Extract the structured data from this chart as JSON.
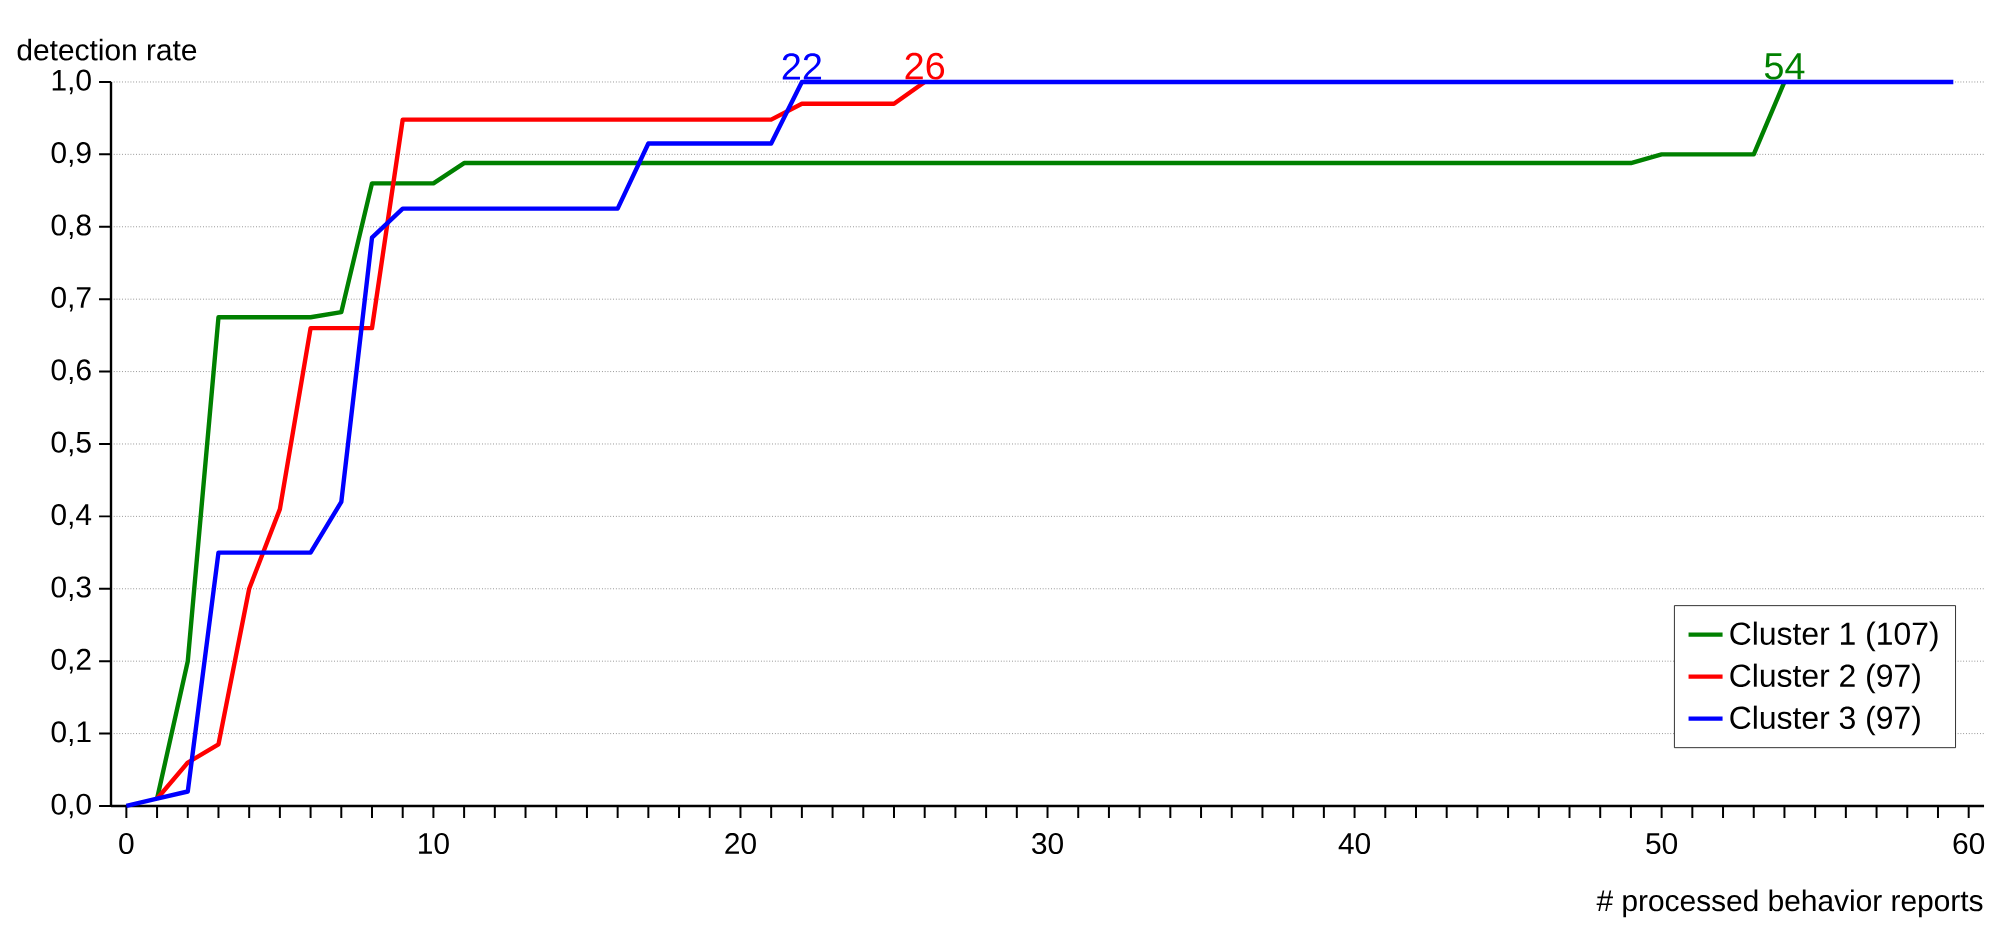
{
  "chart_data": {
    "type": "line",
    "xlabel": "# processed behavior reports",
    "ylabel": "detection rate",
    "xlim": [
      -0.5,
      60.5
    ],
    "ylim": [
      0,
      1
    ],
    "xticks": [
      0,
      10,
      20,
      30,
      40,
      50,
      60
    ],
    "yticks": [
      {
        "value": 0,
        "label": "0,0"
      },
      {
        "value": 0.1,
        "label": "0,1"
      },
      {
        "value": 0.2,
        "label": "0,2"
      },
      {
        "value": 0.3,
        "label": "0,3"
      },
      {
        "value": 0.4,
        "label": "0,4"
      },
      {
        "value": 0.5,
        "label": "0,5"
      },
      {
        "value": 0.6,
        "label": "0,6"
      },
      {
        "value": 0.7,
        "label": "0,7"
      },
      {
        "value": 0.8,
        "label": "0,8"
      },
      {
        "value": 0.9,
        "label": "0,9"
      },
      {
        "value": 1.0,
        "label": "1,0"
      }
    ],
    "grid": "y",
    "legend": "bottom right",
    "marker": "none",
    "line_style": "solid",
    "series": [
      {
        "name": "Cluster 1 (107)",
        "color": "#008000",
        "x": [
          1,
          2,
          3,
          6,
          7,
          8,
          10,
          11,
          49,
          50,
          53,
          54
        ],
        "values": [
          0.01,
          0.2,
          0.675,
          0.675,
          0.682,
          0.86,
          0.86,
          0.888,
          0.888,
          0.9,
          0.9,
          1.0
        ]
      },
      {
        "name": "Cluster 2 (97)",
        "color": "#ff0000",
        "x": [
          1,
          2,
          3,
          4,
          5,
          6,
          8,
          9,
          21,
          22,
          25,
          26
        ],
        "values": [
          0.01,
          0.06,
          0.085,
          0.3,
          0.41,
          0.66,
          0.66,
          0.948,
          0.948,
          0.97,
          0.97,
          1.0
        ]
      },
      {
        "name": "Cluster 3 (97)",
        "color": "#0000ff",
        "x": [
          0,
          1,
          2,
          3,
          6,
          7,
          8,
          9,
          16,
          17,
          21,
          22,
          59.5
        ],
        "values": [
          0,
          0.01,
          0.02,
          0.35,
          0.35,
          0.42,
          0.785,
          0.825,
          0.825,
          0.915,
          0.915,
          1.0,
          1.0
        ]
      }
    ],
    "annotations": [
      {
        "text": "54",
        "x": 54,
        "y": 1.0
      },
      {
        "text": "26",
        "x": 26,
        "y": 1.0
      },
      {
        "text": "22",
        "x": 22,
        "y": 1.0
      }
    ]
  }
}
